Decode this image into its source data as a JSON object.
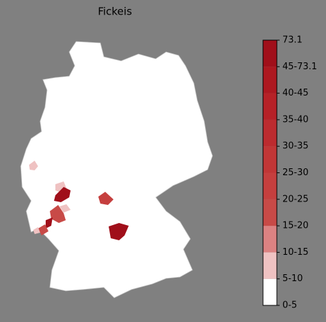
{
  "title": "Fickeis",
  "colorbar": {
    "tick_labels": [
      "0-5",
      "5-10",
      "10-15",
      "15-20",
      "20-25",
      "25-30",
      "30-35",
      "35-40",
      "40-45",
      "45-73.1",
      "73.1"
    ],
    "segment_colors": [
      "#ffffff",
      "#efc2c2",
      "#dc8282",
      "#c84a47",
      "#c53f3e",
      "#c13636",
      "#bc2b2f",
      "#b62127",
      "#ad1820",
      "#a00f1a"
    ]
  }
}
